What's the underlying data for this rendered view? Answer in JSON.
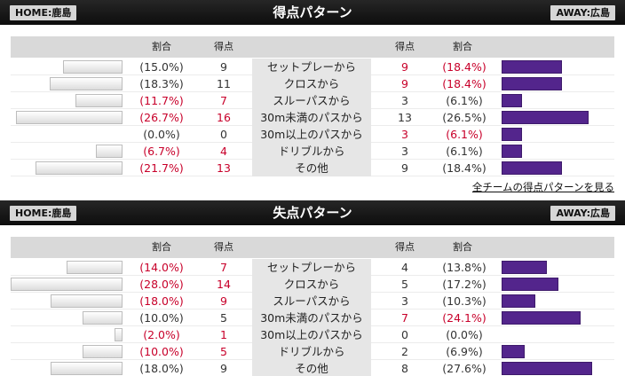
{
  "link_all_teams": "全チームの得点パターンを見る",
  "sections": [
    {
      "title": "得点パターン",
      "home_label": "HOME:鹿島",
      "away_label": "AWAY:広島",
      "headers": {
        "home_ratio": "割合",
        "home_points": "得点",
        "away_points": "得点",
        "away_ratio": "割合"
      },
      "rows": [
        {
          "label": "セットプレーから",
          "home_ratio": "(15.0%)",
          "home_points": "9",
          "home_pct": 15.0,
          "home_red": false,
          "away_points": "9",
          "away_ratio": "(18.4%)",
          "away_pct": 18.4,
          "away_red": true
        },
        {
          "label": "クロスから",
          "home_ratio": "(18.3%)",
          "home_points": "11",
          "home_pct": 18.3,
          "home_red": false,
          "away_points": "9",
          "away_ratio": "(18.4%)",
          "away_pct": 18.4,
          "away_red": true
        },
        {
          "label": "スルーパスから",
          "home_ratio": "(11.7%)",
          "home_points": "7",
          "home_pct": 11.7,
          "home_red": true,
          "away_points": "3",
          "away_ratio": "(6.1%)",
          "away_pct": 6.1,
          "away_red": false
        },
        {
          "label": "30m未満のパスから",
          "home_ratio": "(26.7%)",
          "home_points": "16",
          "home_pct": 26.7,
          "home_red": true,
          "away_points": "13",
          "away_ratio": "(26.5%)",
          "away_pct": 26.5,
          "away_red": false
        },
        {
          "label": "30m以上のパスから",
          "home_ratio": "(0.0%)",
          "home_points": "0",
          "home_pct": 0.0,
          "home_red": false,
          "away_points": "3",
          "away_ratio": "(6.1%)",
          "away_pct": 6.1,
          "away_red": true
        },
        {
          "label": "ドリブルから",
          "home_ratio": "(6.7%)",
          "home_points": "4",
          "home_pct": 6.7,
          "home_red": true,
          "away_points": "3",
          "away_ratio": "(6.1%)",
          "away_pct": 6.1,
          "away_red": false
        },
        {
          "label": "その他",
          "home_ratio": "(21.7%)",
          "home_points": "13",
          "home_pct": 21.7,
          "home_red": true,
          "away_points": "9",
          "away_ratio": "(18.4%)",
          "away_pct": 18.4,
          "away_red": false
        }
      ]
    },
    {
      "title": "失点パターン",
      "home_label": "HOME:鹿島",
      "away_label": "AWAY:広島",
      "headers": {
        "home_ratio": "割合",
        "home_points": "得点",
        "away_points": "得点",
        "away_ratio": "割合"
      },
      "rows": [
        {
          "label": "セットプレーから",
          "home_ratio": "(14.0%)",
          "home_points": "7",
          "home_pct": 14.0,
          "home_red": true,
          "away_points": "4",
          "away_ratio": "(13.8%)",
          "away_pct": 13.8,
          "away_red": false
        },
        {
          "label": "クロスから",
          "home_ratio": "(28.0%)",
          "home_points": "14",
          "home_pct": 28.0,
          "home_red": true,
          "away_points": "5",
          "away_ratio": "(17.2%)",
          "away_pct": 17.2,
          "away_red": false
        },
        {
          "label": "スルーパスから",
          "home_ratio": "(18.0%)",
          "home_points": "9",
          "home_pct": 18.0,
          "home_red": true,
          "away_points": "3",
          "away_ratio": "(10.3%)",
          "away_pct": 10.3,
          "away_red": false
        },
        {
          "label": "30m未満のパスから",
          "home_ratio": "(10.0%)",
          "home_points": "5",
          "home_pct": 10.0,
          "home_red": false,
          "away_points": "7",
          "away_ratio": "(24.1%)",
          "away_pct": 24.1,
          "away_red": true
        },
        {
          "label": "30m以上のパスから",
          "home_ratio": "(2.0%)",
          "home_points": "1",
          "home_pct": 2.0,
          "home_red": true,
          "away_points": "0",
          "away_ratio": "(0.0%)",
          "away_pct": 0.0,
          "away_red": false
        },
        {
          "label": "ドリブルから",
          "home_ratio": "(10.0%)",
          "home_points": "5",
          "home_pct": 10.0,
          "home_red": true,
          "away_points": "2",
          "away_ratio": "(6.9%)",
          "away_pct": 6.9,
          "away_red": false
        },
        {
          "label": "その他",
          "home_ratio": "(18.0%)",
          "home_points": "9",
          "home_pct": 18.0,
          "home_red": false,
          "away_points": "8",
          "away_ratio": "(27.6%)",
          "away_pct": 27.6,
          "away_red": false
        }
      ]
    }
  ],
  "colors": {
    "red": "#c8002a",
    "away_bar": "#53258c",
    "title_bar": "#1a1a1a"
  }
}
